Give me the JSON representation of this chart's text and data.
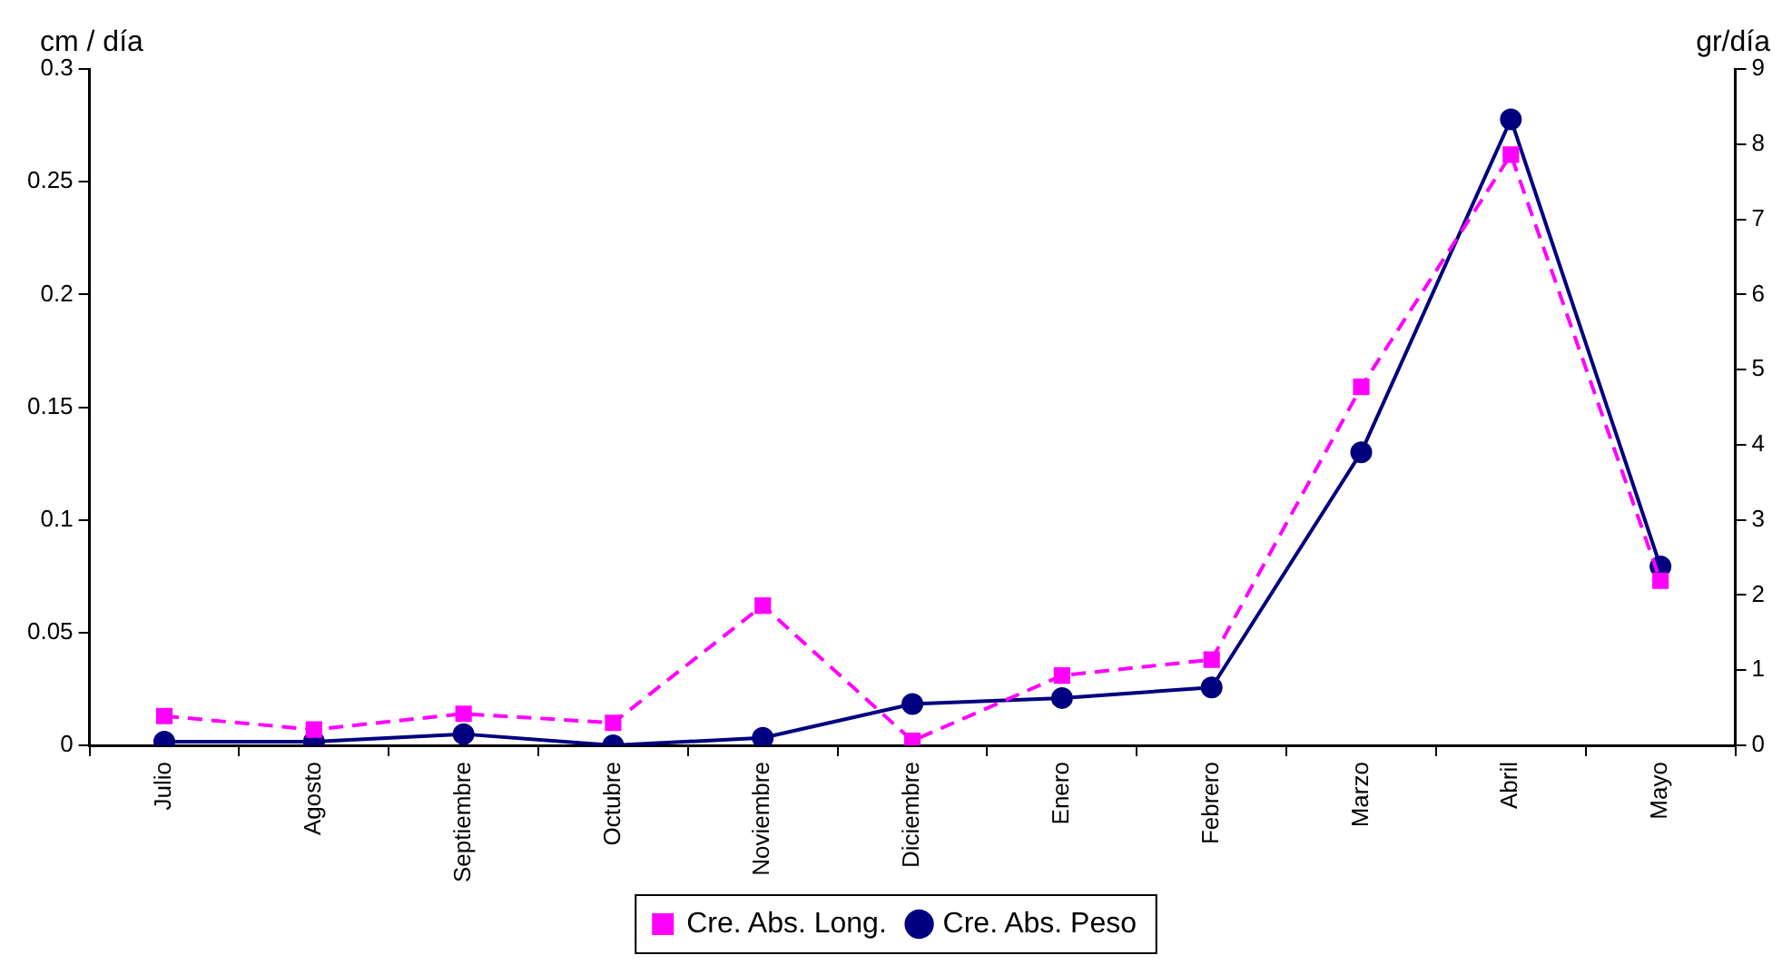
{
  "chart_data": {
    "type": "line",
    "categories": [
      "Julio",
      "Agosto",
      "Septiembre",
      "Octubre",
      "Noviembre",
      "Diciembre",
      "Enero",
      "Febrero",
      "Marzo",
      "Abril",
      "Mayo"
    ],
    "ylabel": "cm / día",
    "y2label": "gr/día",
    "ylim": [
      0,
      0.3
    ],
    "yticks": [
      0,
      0.05,
      0.1,
      0.15,
      0.2,
      0.25,
      0.3
    ],
    "y2lim": [
      0,
      9
    ],
    "y2ticks": [
      0,
      1,
      2,
      3,
      4,
      5,
      6,
      7,
      8,
      9
    ],
    "grid": false,
    "legend": "bottom",
    "series": [
      {
        "name": "Cre. Abs. Long.",
        "color": "#ff00ff",
        "marker": "square",
        "line_style": "dashed",
        "values": [
          0.013,
          0.007,
          0.014,
          0.01,
          0.062,
          0.002,
          0.031,
          0.038,
          0.159,
          0.262,
          0.073
        ]
      },
      {
        "name": "Cre. Abs. Peso",
        "color": "#000080",
        "marker": "circle",
        "line_style": "solid",
        "axis": "y2",
        "values": [
          0.05,
          0.05,
          0.15,
          0,
          0.1,
          0.55,
          0.63,
          0.77,
          3.9,
          8.33,
          2.38
        ]
      }
    ]
  }
}
